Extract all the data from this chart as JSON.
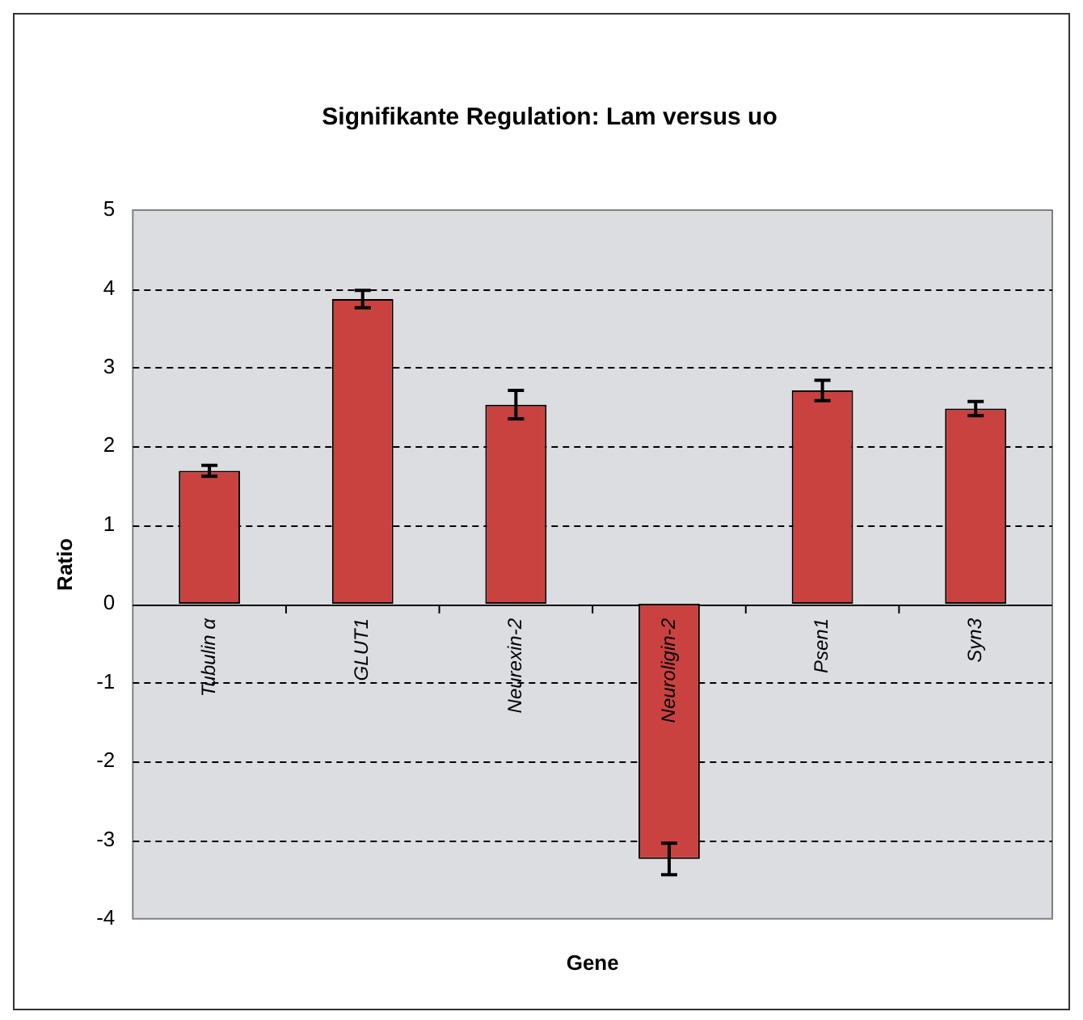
{
  "chart_data": {
    "type": "bar",
    "title": "Signifikante Regulation: Lam versus uo",
    "xlabel": "Gene",
    "ylabel": "Ratio",
    "categories": [
      "Tubulin α",
      "GLUT1",
      "Neurexin-2",
      "Neuroligin-2",
      "Psen1",
      "Syn3"
    ],
    "values": [
      1.69,
      3.87,
      2.53,
      -3.24,
      2.71,
      2.48
    ],
    "errors": [
      0.07,
      0.11,
      0.18,
      0.2,
      0.13,
      0.09
    ],
    "color": "#c94240",
    "ylim": [
      -4,
      5
    ],
    "yticks": [
      -4,
      -3,
      -2,
      -1,
      0,
      1,
      2,
      3,
      4,
      5
    ],
    "grid": "y",
    "legend": false
  }
}
